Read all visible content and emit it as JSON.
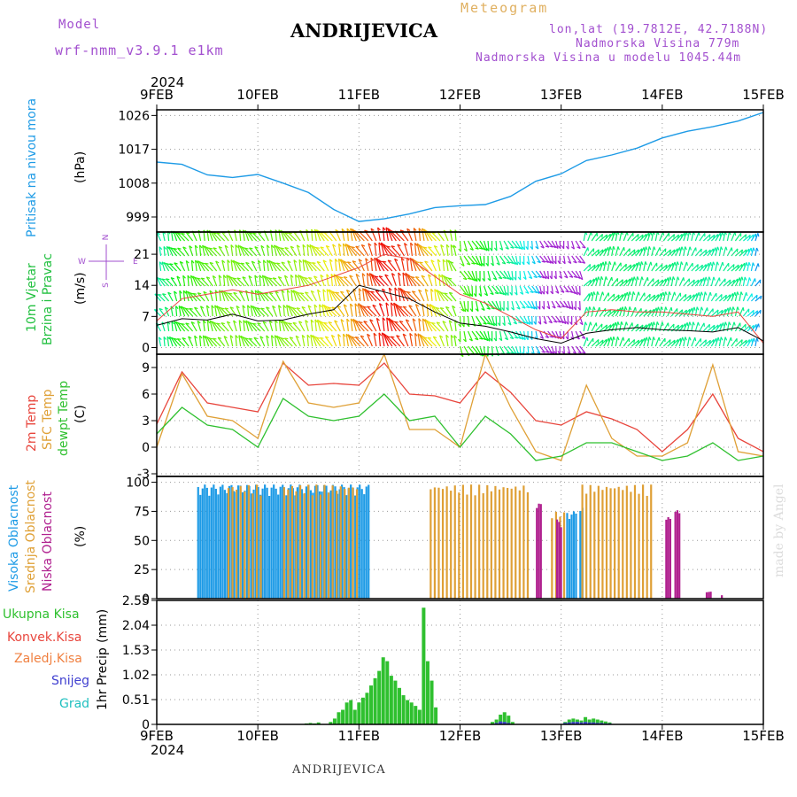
{
  "header": {
    "title": "ANDRIJEVICA",
    "model_label": "Model",
    "model_name": "wrf-nmm_v3.9.1  e1km",
    "meteogram_label": "Meteogram",
    "lonlat": "lon,lat (19.7812E, 42.7188N)",
    "altitude": "Nadmorska Visina 779m",
    "model_altitude": "Nadmorska Visina u modelu 1045.44m",
    "year_top": "2024",
    "year_bottom": "2024",
    "footer": "ANDRIJEVICA",
    "credit": "made by Angel"
  },
  "colors": {
    "pressure": "#1e9be6",
    "temp2m": "#e8453c",
    "sfc": "#dfa036",
    "dew": "#2fc02f",
    "high_cloud": "#1e9be6",
    "mid_cloud": "#dfa036",
    "low_cloud": "#b0208f",
    "precip_total": "#2fc02f",
    "conv": "#e8453c",
    "snow": "#4040d0",
    "grad": "#20c0c0"
  },
  "chart_data": [
    {
      "type": "line",
      "panel": "pressure",
      "ylabel_name": "Pritisak na nivou mora",
      "ylabel_unit": "(hPa)",
      "x_labels": [
        "9FEB",
        "10FEB",
        "11FEB",
        "12FEB",
        "13FEB",
        "14FEB",
        "15FEB"
      ],
      "yticks": [
        999,
        1008,
        1017,
        1026
      ],
      "ylim": [
        995,
        1027.5
      ],
      "x": [
        0,
        0.25,
        0.5,
        0.75,
        1,
        1.25,
        1.5,
        1.75,
        2,
        2.25,
        2.5,
        2.75,
        3,
        3.25,
        3.5,
        3.75,
        4,
        4.25,
        4.5,
        4.75,
        5,
        5.25,
        5.5,
        5.75,
        6
      ],
      "values": [
        1013.6,
        1013,
        1010.2,
        1009.5,
        1010.3,
        1008,
        1005.5,
        1001,
        997.8,
        998.5,
        999.8,
        1001.5,
        1002,
        1002.3,
        1004.5,
        1008.5,
        1010.5,
        1014,
        1015.5,
        1017.3,
        1020,
        1021.8,
        1023,
        1024.5,
        1026.8
      ]
    },
    {
      "type": "line",
      "panel": "wind",
      "ylabel_name": "10m Vjetar Brzina i Pravac",
      "ylabel_name_line1": "10m Vjetar",
      "ylabel_name_line2": "Brzina i Pravac",
      "ylabel_unit": "(m/s)",
      "compass": {
        "n": "N",
        "s": "S",
        "w": "W",
        "e": "E"
      },
      "yticks": [
        0,
        7,
        14,
        21
      ],
      "ylim": [
        -1.5,
        26
      ],
      "x": [
        0,
        0.25,
        0.5,
        0.75,
        1,
        1.25,
        1.5,
        1.75,
        2,
        2.25,
        2.5,
        2.75,
        3,
        3.25,
        3.5,
        3.75,
        4,
        4.25,
        4.5,
        4.75,
        5,
        5.25,
        5.5,
        5.75,
        6
      ],
      "mean_speed": [
        5,
        6.5,
        6.2,
        7.5,
        6,
        6.2,
        7.5,
        8.5,
        14,
        12.5,
        11,
        8,
        5.5,
        4.8,
        3.5,
        2,
        1,
        3.2,
        4,
        4.5,
        4,
        3.8,
        3.5,
        4.5,
        1.5
      ],
      "gust_speed": [
        6,
        11,
        12,
        13,
        12,
        13,
        14,
        16,
        18,
        21,
        20,
        16,
        12,
        10,
        7,
        4,
        2,
        8,
        8.5,
        8,
        8,
        7.5,
        7,
        8,
        1
      ],
      "barb_hue_by_speed": "blue(low) -> green -> yellow -> red(high)"
    },
    {
      "type": "line",
      "panel": "temperature",
      "ylabel_name_1": "2m Temp",
      "ylabel_name_2": "SFC Temp",
      "ylabel_name_3": "dewpt Temp",
      "ylabel_unit": "(C)",
      "yticks": [
        -3,
        0,
        3,
        6,
        9
      ],
      "ylim": [
        -3.3,
        10.5
      ],
      "x": [
        0,
        0.25,
        0.5,
        0.75,
        1,
        1.25,
        1.5,
        1.75,
        2,
        2.25,
        2.5,
        2.75,
        3,
        3.25,
        3.5,
        3.75,
        4,
        4.25,
        4.5,
        4.75,
        5,
        5.25,
        5.5,
        5.75,
        6
      ],
      "series": [
        {
          "name": "2m Temp",
          "values": [
            2.6,
            8.5,
            5,
            4.5,
            4,
            9.5,
            7,
            7.2,
            7,
            9.5,
            6,
            5.8,
            5,
            8.5,
            6.2,
            3,
            2.5,
            4,
            3.2,
            2,
            -0.5,
            2,
            6,
            1,
            -0.5
          ]
        },
        {
          "name": "SFC Temp",
          "values": [
            0,
            8.3,
            3.5,
            3,
            1,
            9.7,
            5,
            4.5,
            5,
            10.5,
            2,
            2,
            0,
            10.5,
            4.5,
            -0.5,
            -1.5,
            7,
            1,
            -1,
            -1,
            0.5,
            9.3,
            -0.5,
            -1
          ]
        },
        {
          "name": "dewpt Temp",
          "values": [
            1.5,
            4.5,
            2.5,
            2,
            0,
            5.5,
            3.5,
            3,
            3.5,
            6,
            3,
            3.5,
            0,
            3.5,
            1.5,
            -1.5,
            -1,
            0.5,
            0.5,
            -0.5,
            -1.5,
            -1,
            0.5,
            -1.5,
            -1
          ]
        }
      ]
    },
    {
      "type": "bar",
      "panel": "cloud",
      "ylabel_name_1": "Visoka Oblacnost",
      "ylabel_name_2": "Srednja Oblacnost",
      "ylabel_name_3": "Niska Oblacnost",
      "ylabel_unit": "(%)",
      "yticks": [
        0,
        25,
        50,
        75,
        100
      ],
      "ylim": [
        0,
        105
      ],
      "high_cloud": [
        [
          0.4,
          1.25,
          98
        ],
        [
          1.25,
          2.1,
          98
        ],
        [
          4.05,
          4.15,
          75
        ],
        [
          4.18,
          4.22,
          78
        ]
      ],
      "mid_cloud": [
        [
          0.7,
          1.05,
          98
        ],
        [
          1.25,
          2.0,
          98
        ],
        [
          2.7,
          3.7,
          98
        ],
        [
          4.2,
          4.9,
          98
        ],
        [
          3.9,
          4.05,
          75
        ]
      ],
      "low_cloud": [
        [
          3.75,
          3.8,
          82
        ],
        [
          3.95,
          4.0,
          68
        ],
        [
          5.03,
          5.08,
          70
        ],
        [
          5.12,
          5.17,
          76
        ],
        [
          5.43,
          5.47,
          6
        ],
        [
          5.58,
          5.6,
          3
        ]
      ]
    },
    {
      "type": "bar",
      "panel": "precip",
      "ylabel_name": "1hr Precip",
      "ylabel_unit": "(mm)",
      "legend": [
        "Ukupna Kisa",
        "Konvek.Kisa",
        "Zaledj.Kisa",
        "Snijeg",
        "Grad"
      ],
      "yticks": [
        0,
        0.51,
        1.02,
        1.53,
        2.04,
        2.55
      ],
      "ylim": [
        0,
        2.55
      ],
      "x_labels": [
        "9FEB",
        "10FEB",
        "11FEB",
        "12FEB",
        "13FEB",
        "14FEB",
        "15FEB"
      ],
      "x": [
        1.48,
        1.52,
        1.56,
        1.6,
        1.72,
        1.76,
        1.8,
        1.84,
        1.88,
        1.92,
        1.96,
        2.0,
        2.04,
        2.08,
        2.12,
        2.16,
        2.2,
        2.24,
        2.28,
        2.32,
        2.36,
        2.4,
        2.44,
        2.48,
        2.52,
        2.56,
        2.6,
        2.64,
        2.68,
        2.72,
        2.76,
        3.32,
        3.36,
        3.4,
        3.44,
        3.48,
        3.52,
        4.04,
        4.08,
        4.12,
        4.16,
        4.2,
        4.24,
        4.28,
        4.32,
        4.36,
        4.4,
        4.44,
        4.48
      ],
      "values": [
        0.02,
        0.03,
        0.02,
        0.04,
        0.05,
        0.12,
        0.25,
        0.3,
        0.45,
        0.5,
        0.3,
        0.45,
        0.55,
        0.65,
        0.8,
        0.95,
        1.1,
        1.38,
        1.3,
        1.0,
        0.9,
        0.75,
        0.6,
        0.5,
        0.45,
        0.38,
        0.3,
        2.4,
        1.3,
        0.9,
        0.35,
        0.05,
        0.1,
        0.2,
        0.25,
        0.18,
        0.05,
        0.05,
        0.1,
        0.12,
        0.1,
        0.08,
        0.15,
        0.1,
        0.12,
        0.1,
        0.08,
        0.06,
        0.04
      ],
      "snow_values": [
        0,
        0,
        0,
        0,
        0,
        0,
        0,
        0,
        0,
        0,
        0,
        0,
        0,
        0,
        0,
        0,
        0,
        0,
        0,
        0,
        0,
        0,
        0,
        0,
        0,
        0,
        0,
        0,
        0,
        0,
        0,
        0,
        0.03,
        0.06,
        0.05,
        0.03,
        0,
        0.03,
        0.04,
        0.05,
        0.05,
        0.04,
        0.05,
        0.04,
        0.04,
        0.03,
        0.03,
        0.02,
        0.02
      ]
    }
  ]
}
